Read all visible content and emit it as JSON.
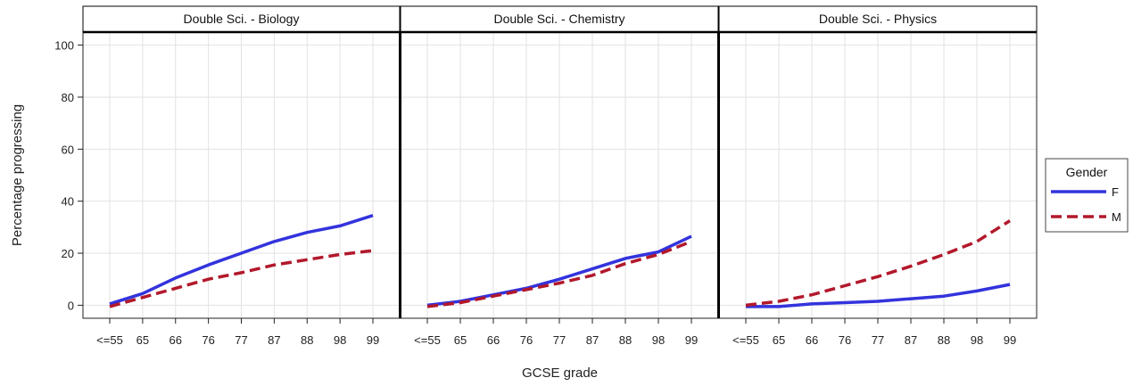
{
  "chart_data": {
    "type": "line",
    "ylabel": "Percentage progressing",
    "xlabel": "GCSE grade",
    "categories": [
      "<=55",
      "65",
      "66",
      "76",
      "77",
      "87",
      "88",
      "98",
      "99"
    ],
    "ylim": [
      -5,
      105
    ],
    "yticks": [
      0,
      20,
      40,
      60,
      80,
      100
    ],
    "grid": true,
    "legend": {
      "title": "Gender",
      "placement": "right",
      "entries": [
        {
          "name": "F",
          "color": "#3333dd",
          "style": "solid"
        },
        {
          "name": "M",
          "color": "#b2182b",
          "style": "dashed"
        }
      ]
    },
    "panels": [
      {
        "title": "Double Sci. - Biology",
        "series": [
          {
            "name": "F",
            "values": [
              0.5,
              4.5,
              10.5,
              15.5,
              20,
              24.5,
              28,
              30.5,
              34.5
            ]
          },
          {
            "name": "M",
            "values": [
              -0.5,
              3,
              6.5,
              10,
              12.5,
              15.5,
              17.5,
              19.5,
              21
            ]
          }
        ]
      },
      {
        "title": "Double Sci. - Chemistry",
        "series": [
          {
            "name": "F",
            "values": [
              0,
              1.5,
              4,
              6.5,
              10,
              14,
              18,
              20.5,
              26.5
            ]
          },
          {
            "name": "M",
            "values": [
              -0.5,
              1,
              3.5,
              6,
              8.5,
              11.5,
              16,
              19.5,
              24.5
            ]
          }
        ]
      },
      {
        "title": "Double Sci. - Physics",
        "series": [
          {
            "name": "F",
            "values": [
              -0.5,
              -0.5,
              0.5,
              1,
              1.5,
              2.5,
              3.5,
              5.5,
              8
            ]
          },
          {
            "name": "M",
            "values": [
              0,
              1.5,
              4,
              7.5,
              11,
              15,
              19.5,
              24.5,
              32.5
            ]
          }
        ]
      }
    ]
  }
}
